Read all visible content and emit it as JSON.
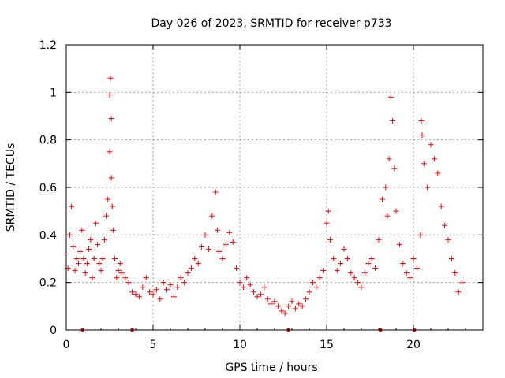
{
  "chart_data": {
    "type": "scatter",
    "title": "Day 026 of 2023, SRMTID for receiver p733",
    "xlabel": "GPS time / hours",
    "ylabel": "SRMTID / TECUs",
    "xlim": [
      0,
      24
    ],
    "ylim": [
      0,
      1.2
    ],
    "x_ticks": [
      0,
      5,
      10,
      15,
      20
    ],
    "x_tick_labels": [
      "0",
      "5",
      "10",
      "15",
      "20"
    ],
    "y_ticks": [
      0,
      0.2,
      0.4,
      0.6,
      0.8,
      1.0,
      1.2
    ],
    "y_tick_labels": [
      "0",
      "0.2",
      "0.4",
      "0.6",
      "0.8",
      "1",
      "1.2"
    ],
    "grid": true,
    "marker": "+",
    "series_color": "#ff0000",
    "gap_markers_x": [
      0.95,
      3.8,
      12.8,
      18.1,
      20.05
    ],
    "series": [
      {
        "name": "SRMTID",
        "x": [
          0.0,
          0.1,
          0.2,
          0.3,
          0.4,
          0.5,
          0.6,
          0.7,
          0.8,
          0.9,
          1.0,
          1.1,
          1.2,
          1.3,
          1.4,
          1.5,
          1.6,
          1.7,
          1.8,
          1.9,
          2.0,
          2.1,
          2.2,
          2.3,
          2.4,
          2.5,
          2.5,
          2.55,
          2.6,
          2.6,
          2.65,
          2.7,
          2.8,
          2.9,
          3.0,
          3.1,
          3.2,
          3.4,
          3.6,
          3.8,
          4.0,
          4.2,
          4.4,
          4.6,
          4.8,
          5.0,
          5.2,
          5.4,
          5.6,
          5.8,
          6.0,
          6.2,
          6.4,
          6.6,
          6.8,
          7.0,
          7.2,
          7.4,
          7.6,
          7.8,
          8.0,
          8.2,
          8.4,
          8.6,
          8.7,
          8.8,
          9.0,
          9.2,
          9.4,
          9.6,
          9.8,
          10.0,
          10.2,
          10.4,
          10.6,
          10.8,
          11.0,
          11.2,
          11.4,
          11.6,
          11.8,
          12.0,
          12.2,
          12.4,
          12.6,
          12.8,
          13.0,
          13.2,
          13.4,
          13.6,
          13.8,
          14.0,
          14.2,
          14.4,
          14.6,
          14.8,
          15.0,
          15.1,
          15.2,
          15.4,
          15.6,
          15.8,
          16.0,
          16.2,
          16.4,
          16.6,
          16.8,
          17.0,
          17.2,
          17.4,
          17.6,
          17.8,
          18.0,
          18.2,
          18.4,
          18.5,
          18.6,
          18.7,
          18.8,
          18.9,
          19.0,
          19.2,
          19.4,
          19.6,
          19.8,
          20.0,
          20.2,
          20.4,
          20.45,
          20.5,
          20.6,
          20.8,
          21.0,
          21.2,
          21.4,
          21.6,
          21.8,
          22.0,
          22.2,
          22.4,
          22.6,
          22.8
        ],
        "y": [
          0.32,
          0.26,
          0.4,
          0.52,
          0.35,
          0.25,
          0.3,
          0.28,
          0.33,
          0.42,
          0.3,
          0.24,
          0.28,
          0.34,
          0.38,
          0.22,
          0.3,
          0.45,
          0.36,
          0.28,
          0.25,
          0.3,
          0.38,
          0.48,
          0.55,
          0.75,
          0.99,
          1.06,
          0.89,
          0.64,
          0.52,
          0.42,
          0.3,
          0.22,
          0.25,
          0.28,
          0.24,
          0.22,
          0.2,
          0.16,
          0.15,
          0.14,
          0.18,
          0.22,
          0.16,
          0.15,
          0.17,
          0.13,
          0.2,
          0.17,
          0.19,
          0.14,
          0.18,
          0.22,
          0.2,
          0.24,
          0.26,
          0.3,
          0.28,
          0.35,
          0.4,
          0.34,
          0.48,
          0.58,
          0.42,
          0.33,
          0.3,
          0.36,
          0.41,
          0.37,
          0.26,
          0.2,
          0.18,
          0.22,
          0.19,
          0.16,
          0.14,
          0.15,
          0.18,
          0.13,
          0.11,
          0.12,
          0.1,
          0.08,
          0.07,
          0.1,
          0.12,
          0.09,
          0.11,
          0.1,
          0.13,
          0.16,
          0.2,
          0.18,
          0.22,
          0.25,
          0.45,
          0.5,
          0.38,
          0.3,
          0.25,
          0.28,
          0.34,
          0.3,
          0.24,
          0.22,
          0.2,
          0.18,
          0.24,
          0.28,
          0.3,
          0.26,
          0.38,
          0.55,
          0.6,
          0.48,
          0.72,
          0.98,
          0.88,
          0.68,
          0.5,
          0.36,
          0.28,
          0.24,
          0.22,
          0.3,
          0.26,
          0.4,
          0.88,
          0.82,
          0.7,
          0.6,
          0.78,
          0.72,
          0.66,
          0.52,
          0.44,
          0.38,
          0.3,
          0.24,
          0.16,
          0.2
        ]
      }
    ]
  }
}
